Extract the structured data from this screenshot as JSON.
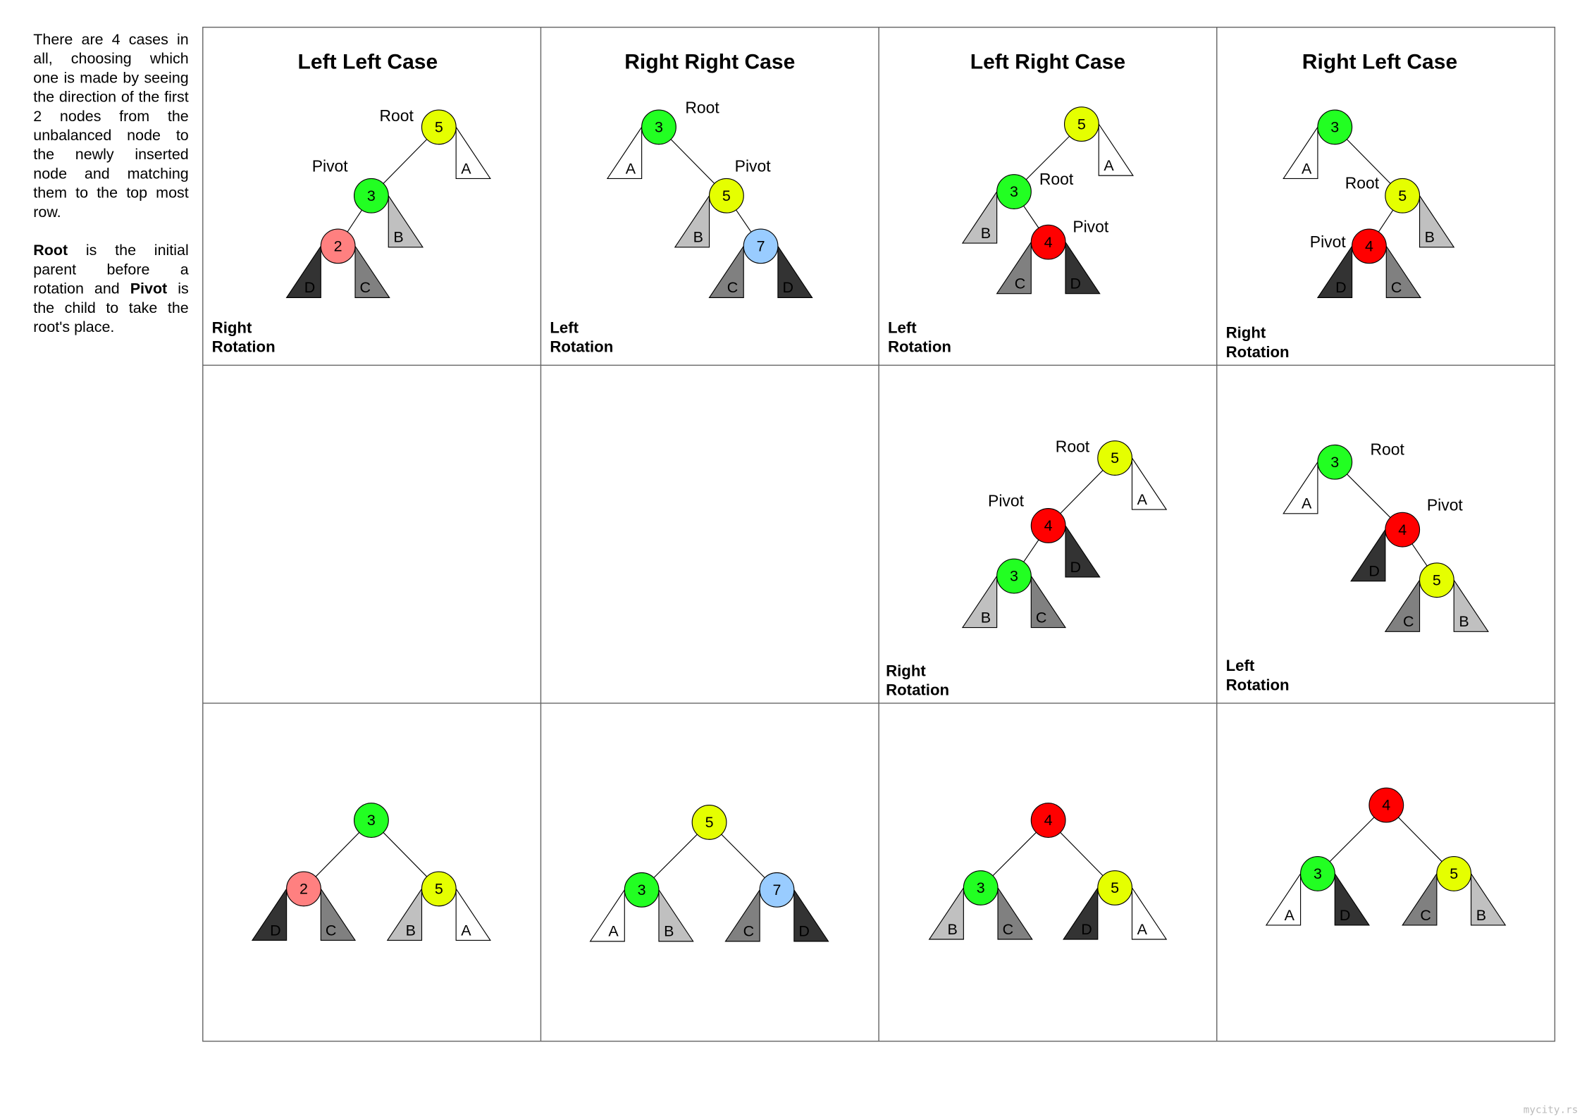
{
  "intro": {
    "p1": "There are 4 cases in all, choosing which one is made by seeing the direction of the first 2 nodes from the unbalanced node to the newly inserted node and matching them to the top most row.",
    "root_word": "Root",
    "p2_a": " is the initial parent before a rotation and ",
    "pivot_word": "Pivot",
    "p2_b": " is the child to take the root's place."
  },
  "columns": [
    "Left Left Case",
    "Right Right Case",
    "Left Right Case",
    "Right Left Case"
  ],
  "colors": {
    "yellow": "#e5ff00",
    "green": "#22ff22",
    "pink": "#ff8080",
    "blue": "#99ccff",
    "red": "#ff0000",
    "white": "#ffffff",
    "light": "#c0c0c0",
    "mid": "#808080",
    "dark": "#333333"
  },
  "cells": [
    {
      "rotation": [
        "Right",
        "Rotation"
      ],
      "root_label": "Root",
      "pivot_label": "Pivot",
      "nodes": [
        {
          "value": "5",
          "color": "yellow"
        },
        {
          "value": "3",
          "color": "green"
        },
        {
          "value": "2",
          "color": "pink"
        }
      ],
      "subtrees": [
        {
          "letter": "A",
          "shade": "white"
        },
        {
          "letter": "B",
          "shade": "light"
        },
        {
          "letter": "D",
          "shade": "dark"
        },
        {
          "letter": "C",
          "shade": "mid"
        }
      ]
    },
    {
      "rotation": [
        "Left",
        "Rotation"
      ],
      "root_label": "Root",
      "pivot_label": "Pivot",
      "nodes": [
        {
          "value": "3",
          "color": "green"
        },
        {
          "value": "5",
          "color": "yellow"
        },
        {
          "value": "7",
          "color": "blue"
        }
      ],
      "subtrees": [
        {
          "letter": "A",
          "shade": "white"
        },
        {
          "letter": "B",
          "shade": "light"
        },
        {
          "letter": "C",
          "shade": "mid"
        },
        {
          "letter": "D",
          "shade": "dark"
        }
      ]
    },
    {
      "rotation": [
        "Left",
        "Rotation"
      ],
      "root_label": "Root",
      "pivot_label": "Pivot",
      "nodes": [
        {
          "value": "5",
          "color": "yellow"
        },
        {
          "value": "3",
          "color": "green"
        },
        {
          "value": "4",
          "color": "red"
        }
      ],
      "subtrees": [
        {
          "letter": "A",
          "shade": "white"
        },
        {
          "letter": "B",
          "shade": "light"
        },
        {
          "letter": "C",
          "shade": "mid"
        },
        {
          "letter": "D",
          "shade": "dark"
        }
      ]
    },
    {
      "rotation": [
        "Right",
        "Rotation"
      ],
      "root_label": "Root",
      "pivot_label": "Pivot",
      "nodes": [
        {
          "value": "3",
          "color": "green"
        },
        {
          "value": "5",
          "color": "yellow"
        },
        {
          "value": "4",
          "color": "red"
        }
      ],
      "subtrees": [
        {
          "letter": "A",
          "shade": "white"
        },
        {
          "letter": "B",
          "shade": "light"
        },
        {
          "letter": "D",
          "shade": "dark"
        },
        {
          "letter": "C",
          "shade": "mid"
        }
      ]
    },
    null,
    null,
    {
      "rotation": [
        "Right",
        "Rotation"
      ],
      "root_label": "Root",
      "pivot_label": "Pivot",
      "nodes": [
        {
          "value": "5",
          "color": "yellow"
        },
        {
          "value": "4",
          "color": "red"
        },
        {
          "value": "3",
          "color": "green"
        }
      ],
      "subtrees": [
        {
          "letter": "A",
          "shade": "white"
        },
        {
          "letter": "D",
          "shade": "dark"
        },
        {
          "letter": "B",
          "shade": "light"
        },
        {
          "letter": "C",
          "shade": "mid"
        }
      ]
    },
    {
      "rotation": [
        "Left",
        "Rotation"
      ],
      "root_label": "Root",
      "pivot_label": "Pivot",
      "nodes": [
        {
          "value": "3",
          "color": "green"
        },
        {
          "value": "4",
          "color": "red"
        },
        {
          "value": "5",
          "color": "yellow"
        }
      ],
      "subtrees": [
        {
          "letter": "A",
          "shade": "white"
        },
        {
          "letter": "D",
          "shade": "dark"
        },
        {
          "letter": "C",
          "shade": "mid"
        },
        {
          "letter": "B",
          "shade": "light"
        }
      ]
    },
    {
      "nodes": [
        {
          "value": "3",
          "color": "green"
        },
        {
          "value": "2",
          "color": "pink"
        },
        {
          "value": "5",
          "color": "yellow"
        }
      ],
      "subtrees": [
        {
          "letter": "D",
          "shade": "dark"
        },
        {
          "letter": "C",
          "shade": "mid"
        },
        {
          "letter": "B",
          "shade": "light"
        },
        {
          "letter": "A",
          "shade": "white"
        }
      ]
    },
    {
      "nodes": [
        {
          "value": "5",
          "color": "yellow"
        },
        {
          "value": "3",
          "color": "green"
        },
        {
          "value": "7",
          "color": "blue"
        }
      ],
      "subtrees": [
        {
          "letter": "A",
          "shade": "white"
        },
        {
          "letter": "B",
          "shade": "light"
        },
        {
          "letter": "C",
          "shade": "mid"
        },
        {
          "letter": "D",
          "shade": "dark"
        }
      ]
    },
    {
      "nodes": [
        {
          "value": "4",
          "color": "red"
        },
        {
          "value": "3",
          "color": "green"
        },
        {
          "value": "5",
          "color": "yellow"
        }
      ],
      "subtrees": [
        {
          "letter": "B",
          "shade": "light"
        },
        {
          "letter": "C",
          "shade": "mid"
        },
        {
          "letter": "D",
          "shade": "dark"
        },
        {
          "letter": "A",
          "shade": "white"
        }
      ]
    },
    {
      "nodes": [
        {
          "value": "4",
          "color": "red"
        },
        {
          "value": "3",
          "color": "green"
        },
        {
          "value": "5",
          "color": "yellow"
        }
      ],
      "subtrees": [
        {
          "letter": "A",
          "shade": "white"
        },
        {
          "letter": "D",
          "shade": "dark"
        },
        {
          "letter": "C",
          "shade": "mid"
        },
        {
          "letter": "B",
          "shade": "light"
        }
      ]
    }
  ],
  "watermark": "mycity.rs"
}
